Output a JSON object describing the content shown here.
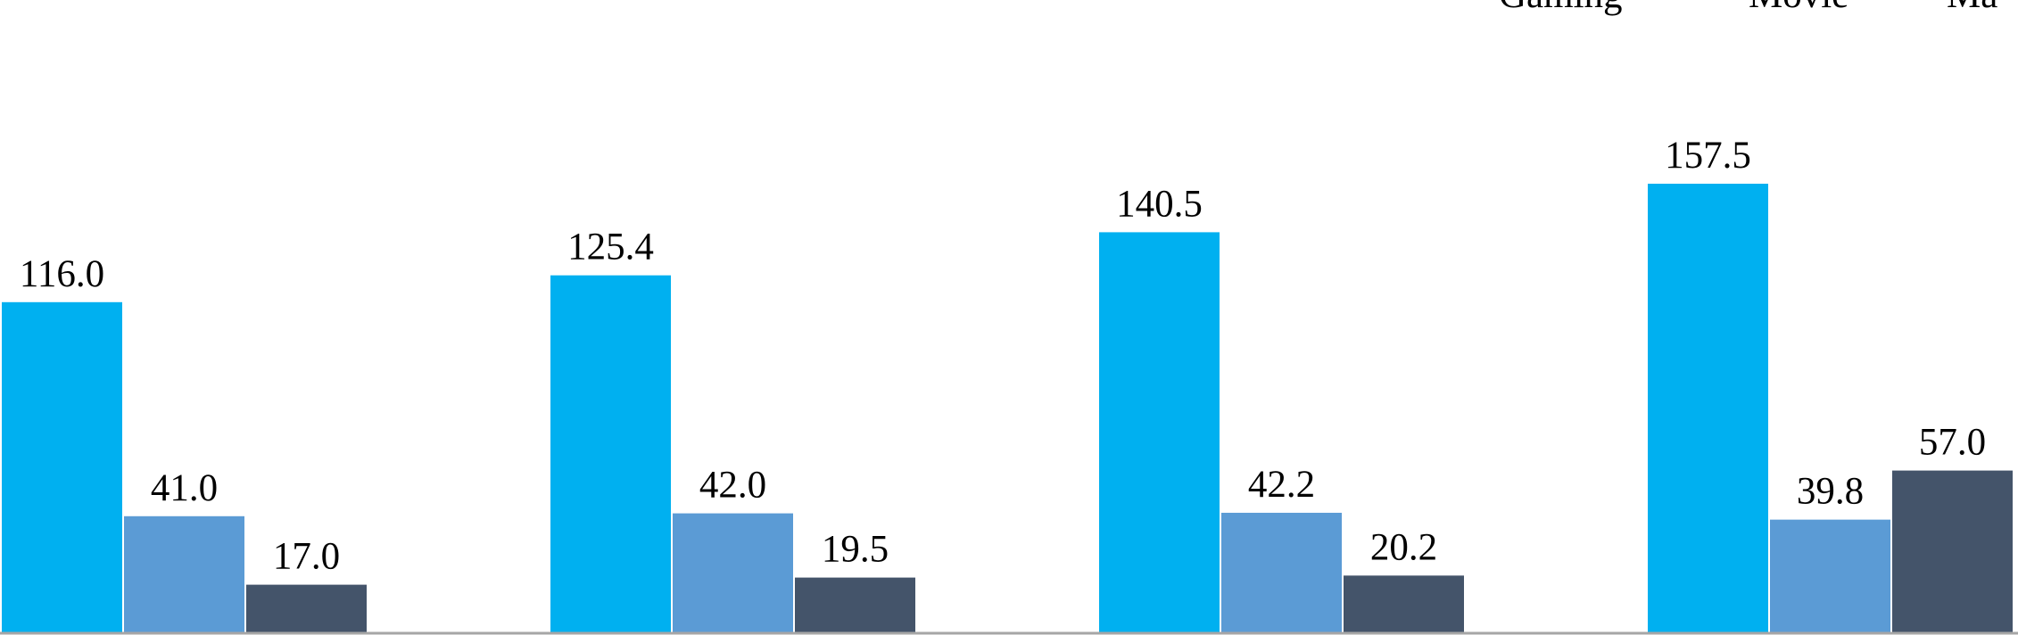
{
  "chart_data": {
    "type": "bar",
    "categories": [
      "",
      "",
      "",
      ""
    ],
    "series": [
      {
        "name": "Gaming",
        "color": "#00B0F0",
        "values": [
          116.0,
          125.4,
          140.5,
          157.5
        ]
      },
      {
        "name": "Movie",
        "color": "#5B9BD5",
        "values": [
          41.0,
          42.0,
          42.2,
          39.8
        ]
      },
      {
        "name": "Ma",
        "color": "#44546A",
        "values": [
          17.0,
          19.5,
          20.2,
          57.0
        ]
      }
    ],
    "data_labels": [
      [
        "116.0",
        "125.4",
        "140.5",
        "157.5"
      ],
      [
        "41.0",
        "42.0",
        "42.2",
        "39.8"
      ],
      [
        "17.0",
        "19.5",
        "20.2",
        "57.0"
      ]
    ],
    "ylim": [
      0,
      160
    ],
    "grid": false,
    "legend_position": "top-right",
    "axis_color": "#A6A6A6"
  }
}
